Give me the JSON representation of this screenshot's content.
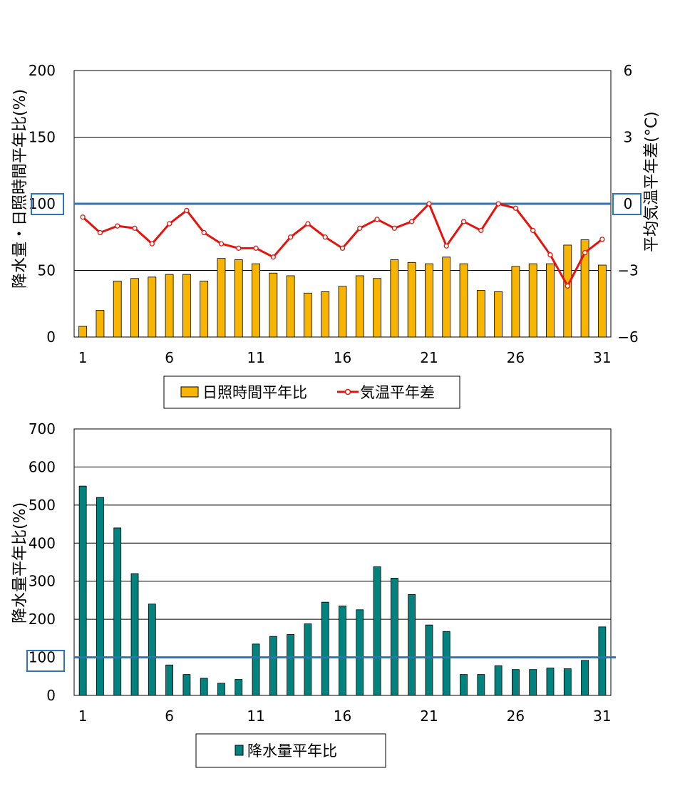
{
  "chart_data": [
    {
      "type": "bar+line",
      "x": [
        1,
        2,
        3,
        4,
        5,
        6,
        7,
        8,
        9,
        10,
        11,
        12,
        13,
        14,
        15,
        16,
        17,
        18,
        19,
        20,
        21,
        22,
        23,
        24,
        25,
        26,
        27,
        28,
        29,
        30,
        31
      ],
      "x_tick_labels": [
        "1",
        "6",
        "11",
        "16",
        "21",
        "26",
        "31"
      ],
      "x_tick_values": [
        1,
        6,
        11,
        16,
        21,
        26,
        31
      ],
      "ylabel_left": "降水量・日照時間平年比(%)",
      "ylabel_right": "平均気温平年差(°C)",
      "ylim_left": [
        0,
        200
      ],
      "ylim_right": [
        -6,
        6
      ],
      "y_ticks_left": [
        "0",
        "50",
        "100",
        "150",
        "200"
      ],
      "y_ticks_right": [
        "−6",
        "−3",
        "0",
        "3",
        "6"
      ],
      "reference_line_left": 100,
      "grid": true,
      "legend_position": "bottom",
      "series": [
        {
          "name": "日照時間平年比",
          "kind": "bar",
          "axis": "left",
          "color": "#F7B500",
          "values": [
            8,
            20,
            42,
            44,
            45,
            47,
            47,
            42,
            59,
            58,
            55,
            48,
            46,
            33,
            34,
            38,
            46,
            44,
            58,
            56,
            55,
            60,
            55,
            35,
            34,
            53,
            55,
            55,
            69,
            73,
            54
          ]
        },
        {
          "name": "気温平年差",
          "kind": "line",
          "axis": "right",
          "color": "#E8120C",
          "values": [
            -0.6,
            -1.3,
            -1.0,
            -1.1,
            -1.8,
            -0.9,
            -0.3,
            -1.3,
            -1.8,
            -2.0,
            -2.0,
            -2.4,
            -1.5,
            -0.9,
            -1.5,
            -2.0,
            -1.1,
            -0.7,
            -1.1,
            -0.8,
            0.0,
            -1.9,
            -0.8,
            -1.2,
            0.0,
            -0.2,
            -1.2,
            -2.3,
            -3.7,
            -2.2,
            -1.6
          ]
        }
      ]
    },
    {
      "type": "bar",
      "x": [
        1,
        2,
        3,
        4,
        5,
        6,
        7,
        8,
        9,
        10,
        11,
        12,
        13,
        14,
        15,
        16,
        17,
        18,
        19,
        20,
        21,
        22,
        23,
        24,
        25,
        26,
        27,
        28,
        29,
        30,
        31
      ],
      "x_tick_labels": [
        "1",
        "6",
        "11",
        "16",
        "21",
        "26",
        "31"
      ],
      "x_tick_values": [
        1,
        6,
        11,
        16,
        21,
        26,
        31
      ],
      "ylabel": "降水量平年比(%)",
      "ylim": [
        0,
        700
      ],
      "y_ticks": [
        "0",
        "100",
        "200",
        "300",
        "400",
        "500",
        "600",
        "700"
      ],
      "reference_line": 100,
      "grid": true,
      "legend_position": "bottom",
      "series": [
        {
          "name": "降水量平年比",
          "kind": "bar",
          "color": "#00837F",
          "values": [
            550,
            520,
            440,
            320,
            240,
            80,
            55,
            45,
            32,
            42,
            135,
            155,
            160,
            188,
            245,
            235,
            225,
            338,
            308,
            265,
            185,
            168,
            55,
            55,
            78,
            68,
            68,
            72,
            70,
            92,
            180
          ]
        }
      ]
    }
  ],
  "colors": {
    "reference_line": "#2E75B6",
    "highlight_box": "#2E75B6"
  }
}
